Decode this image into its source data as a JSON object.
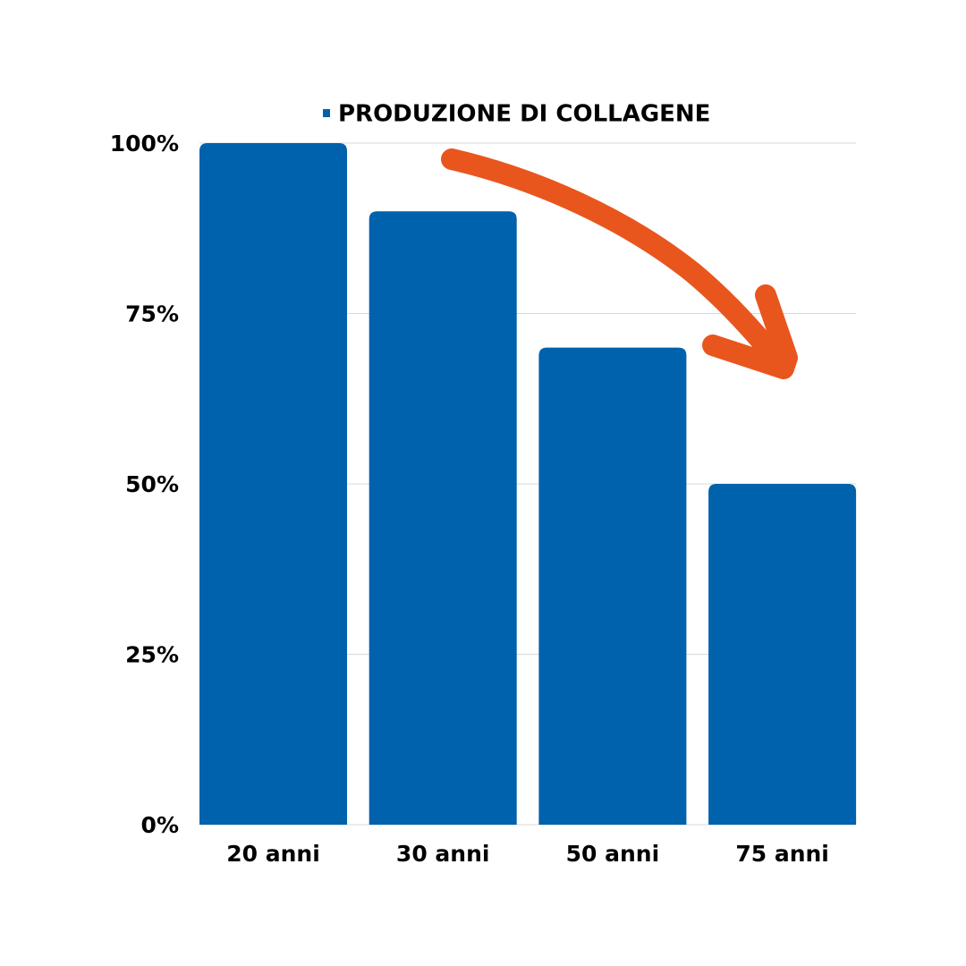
{
  "chart_data": {
    "type": "bar",
    "categories": [
      "20 anni",
      "30 anni",
      "50 anni",
      "75 anni"
    ],
    "series": [
      {
        "name": "PRODUZIONE DI COLLAGENE",
        "color": "#0062ad",
        "values": [
          100,
          90,
          70,
          50
        ]
      }
    ],
    "ylim": [
      0,
      100
    ],
    "yticks": [
      {
        "value": 0,
        "label": "0%"
      },
      {
        "value": 25,
        "label": "25%"
      },
      {
        "value": 50,
        "label": "50%"
      },
      {
        "value": 75,
        "label": "75%"
      },
      {
        "value": 100,
        "label": "100%"
      }
    ],
    "grid": true,
    "legend": "top"
  }
}
